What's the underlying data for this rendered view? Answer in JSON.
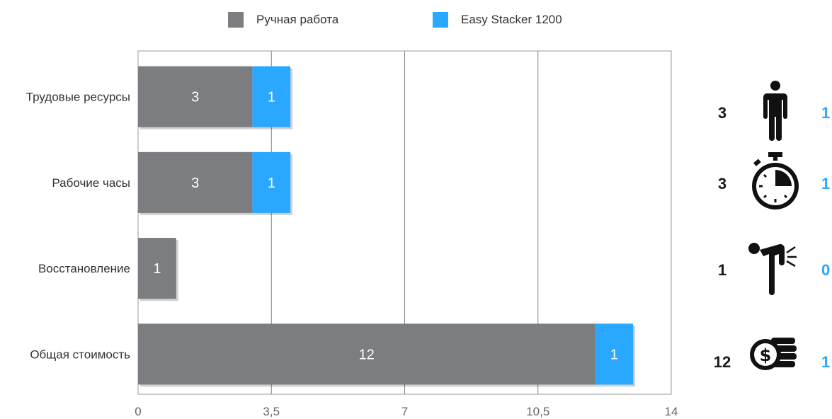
{
  "legend": {
    "manual_label": "Ручная работа",
    "stacker_label": "Easy Stacker 1200"
  },
  "colors": {
    "manual": "#7b7d80",
    "stacker": "#2aa7ff",
    "grid": "#808080",
    "side_right": "#2aa7ff"
  },
  "chart_data": {
    "type": "bar",
    "orientation": "horizontal",
    "stacked": true,
    "categories": [
      "Трудовые ресурсы",
      "Рабочие часы",
      "Восстановление",
      "Общая стоимость"
    ],
    "series": [
      {
        "name": "Ручная работа",
        "values": [
          3,
          3,
          1,
          12
        ],
        "labels": [
          "3",
          "3",
          "1",
          "12"
        ]
      },
      {
        "name": "Easy Stacker 1200",
        "values": [
          1,
          1,
          0,
          1
        ],
        "labels": [
          "1",
          "1",
          "",
          "1"
        ]
      }
    ],
    "xlim": [
      0,
      14
    ],
    "xticks": [
      0,
      3.5,
      7,
      10.5,
      14
    ],
    "xtick_labels": [
      "0",
      "3,5",
      "7",
      "10,5",
      "14"
    ],
    "grid": true,
    "legend_position": "top"
  },
  "side_panel": [
    {
      "left": "3",
      "icon": "person-icon",
      "right": "1"
    },
    {
      "left": "3",
      "icon": "stopwatch-icon",
      "right": "1"
    },
    {
      "left": "1",
      "icon": "back-pain-icon",
      "right": "0"
    },
    {
      "left": "12",
      "icon": "money-coins-icon",
      "right": "1"
    }
  ]
}
